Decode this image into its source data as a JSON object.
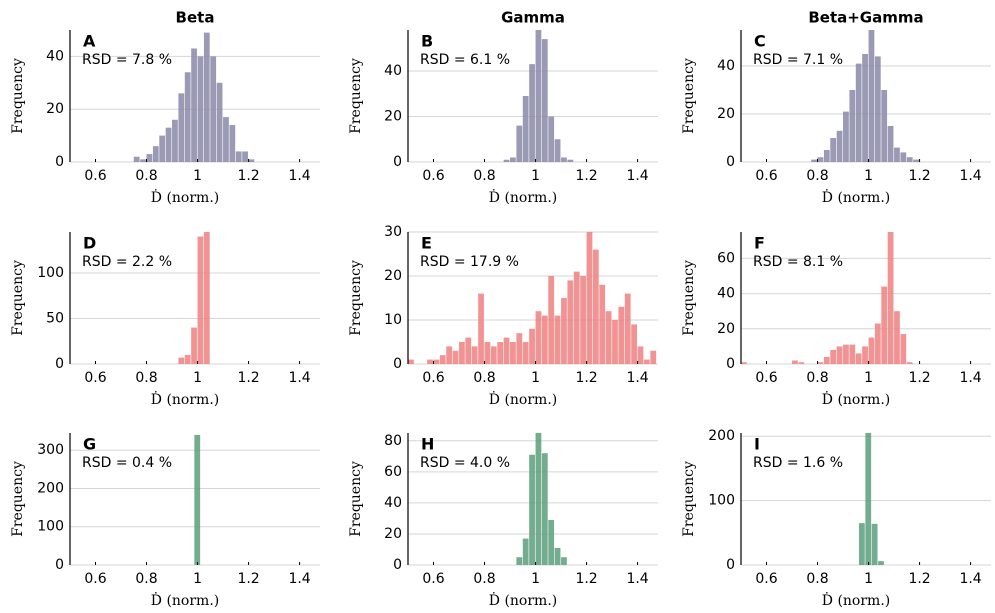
{
  "chart_data": [
    {
      "type": "histogram",
      "title": "Beta",
      "panel_label": "A",
      "annotation": "RSD = 7.8 %",
      "xlabel": "Ḋ (norm.)",
      "ylabel": "Frequency",
      "color": "#8a88a8",
      "bins": [
        0.75,
        0.775,
        0.8,
        0.825,
        0.85,
        0.875,
        0.9,
        0.925,
        0.95,
        0.975,
        1.0,
        1.025,
        1.05,
        1.075,
        1.1,
        1.125,
        1.15,
        1.175,
        1.2,
        1.225
      ],
      "counts": [
        2,
        1,
        3,
        6,
        10,
        13,
        16,
        26,
        34,
        43,
        40,
        49,
        40,
        30,
        17,
        14,
        4,
        4,
        1
      ],
      "xlim": [
        0.5,
        1.48
      ],
      "ylim": [
        0,
        50
      ],
      "xticks": [
        0.6,
        0.8,
        1,
        1.2,
        1.4
      ],
      "yticks": [
        0,
        20,
        40
      ],
      "grid": true
    },
    {
      "type": "histogram",
      "title": "Gamma",
      "panel_label": "B",
      "annotation": "RSD = 6.1 %",
      "xlabel": "Ḋ (norm.)",
      "ylabel": "Frequency",
      "color": "#8a88a8",
      "bins": [
        0.875,
        0.9,
        0.925,
        0.95,
        0.975,
        1.0,
        1.025,
        1.05,
        1.075,
        1.1,
        1.125,
        1.15
      ],
      "counts": [
        1,
        2,
        16,
        29,
        43,
        58,
        54,
        20,
        10,
        2,
        1
      ],
      "xlim": [
        0.5,
        1.48
      ],
      "ylim": [
        0,
        58
      ],
      "xticks": [
        0.6,
        0.8,
        1,
        1.2,
        1.4
      ],
      "yticks": [
        0,
        20,
        40
      ],
      "grid": true
    },
    {
      "type": "histogram",
      "title": "Beta+Gamma",
      "panel_label": "C",
      "annotation": "RSD = 7.1 %",
      "xlabel": "Ḋ (norm.)",
      "ylabel": "Frequency",
      "color": "#8a88a8",
      "bins": [
        0.775,
        0.8,
        0.825,
        0.85,
        0.875,
        0.9,
        0.925,
        0.95,
        0.975,
        1.0,
        1.025,
        1.05,
        1.075,
        1.1,
        1.125,
        1.15,
        1.175,
        1.2
      ],
      "counts": [
        1,
        2,
        5,
        10,
        13,
        21,
        30,
        41,
        45,
        55,
        44,
        30,
        15,
        6,
        4,
        2,
        1
      ],
      "xlim": [
        0.5,
        1.48
      ],
      "ylim": [
        0,
        55
      ],
      "xticks": [
        0.6,
        0.8,
        1,
        1.2,
        1.4
      ],
      "yticks": [
        0,
        20,
        40
      ],
      "grid": true
    },
    {
      "type": "histogram",
      "panel_label": "D",
      "annotation": "RSD = 2.2 %",
      "xlabel": "Ḋ (norm.)",
      "ylabel": "Frequency",
      "color": "#f08080",
      "bins": [
        0.925,
        0.95,
        0.975,
        1.0,
        1.025,
        1.05
      ],
      "counts": [
        7,
        10,
        40,
        140,
        145
      ],
      "xlim": [
        0.5,
        1.48
      ],
      "ylim": [
        0,
        145
      ],
      "xticks": [
        0.6,
        0.8,
        1,
        1.2,
        1.4
      ],
      "yticks": [
        0,
        50,
        100
      ],
      "grid": true
    },
    {
      "type": "histogram",
      "panel_label": "E",
      "annotation": "RSD = 17.9 %",
      "xlabel": "Ḋ (norm.)",
      "ylabel": "Frequency",
      "color": "#f08080",
      "bins": [
        0.5,
        0.525,
        0.55,
        0.575,
        0.6,
        0.625,
        0.65,
        0.675,
        0.7,
        0.725,
        0.75,
        0.775,
        0.8,
        0.825,
        0.85,
        0.875,
        0.9,
        0.925,
        0.95,
        0.975,
        1.0,
        1.025,
        1.05,
        1.075,
        1.1,
        1.125,
        1.15,
        1.175,
        1.2,
        1.225,
        1.25,
        1.275,
        1.3,
        1.325,
        1.35,
        1.375,
        1.4,
        1.425,
        1.45,
        1.475
      ],
      "counts": [
        1,
        0,
        0,
        1,
        1,
        2,
        4,
        3,
        5,
        6,
        4,
        16,
        5,
        4,
        5,
        6,
        5,
        7,
        5,
        8,
        12,
        11,
        20,
        11,
        15,
        19,
        21,
        20,
        30,
        26,
        18,
        12,
        10,
        13,
        16,
        9,
        4,
        1,
        3
      ],
      "xlim": [
        0.5,
        1.48
      ],
      "ylim": [
        0,
        30
      ],
      "xticks": [
        0.6,
        0.8,
        1,
        1.2,
        1.4
      ],
      "yticks": [
        0,
        10,
        20,
        30
      ],
      "grid": true
    },
    {
      "type": "histogram",
      "panel_label": "F",
      "annotation": "RSD = 8.1 %",
      "xlabel": "Ḋ (norm.)",
      "ylabel": "Frequency",
      "color": "#f08080",
      "bins": [
        0.5,
        0.525,
        0.55,
        0.575,
        0.6,
        0.625,
        0.65,
        0.675,
        0.7,
        0.725,
        0.75,
        0.775,
        0.8,
        0.825,
        0.85,
        0.875,
        0.9,
        0.925,
        0.95,
        0.975,
        1.0,
        1.025,
        1.05,
        1.075,
        1.1,
        1.125,
        1.15,
        1.175
      ],
      "counts": [
        1,
        0,
        0,
        0,
        0,
        0,
        0,
        0,
        2,
        1,
        0,
        0,
        1,
        4,
        8,
        10,
        11,
        11,
        6,
        10,
        15,
        23,
        44,
        75,
        30,
        17,
        1
      ],
      "xlim": [
        0.5,
        1.48
      ],
      "ylim": [
        0,
        75
      ],
      "xticks": [
        0.6,
        0.8,
        1,
        1.2,
        1.4
      ],
      "yticks": [
        0,
        20,
        40,
        60
      ],
      "grid": true
    },
    {
      "type": "histogram",
      "panel_label": "G",
      "annotation": "RSD = 0.4 %",
      "xlabel": "Ḋ (norm.)",
      "ylabel": "Frequency",
      "color": "#5a9e7a",
      "bins": [
        0.9875,
        1.0125
      ],
      "counts": [
        340
      ],
      "xlim": [
        0.5,
        1.48
      ],
      "ylim": [
        0,
        345
      ],
      "xticks": [
        0.6,
        0.8,
        1,
        1.2,
        1.4
      ],
      "yticks": [
        0,
        100,
        200,
        300
      ],
      "grid": true
    },
    {
      "type": "histogram",
      "panel_label": "H",
      "annotation": "RSD = 4.0 %",
      "xlabel": "Ḋ (norm.)",
      "ylabel": "Frequency",
      "color": "#5a9e7a",
      "bins": [
        0.925,
        0.95,
        0.975,
        1.0,
        1.025,
        1.05,
        1.075,
        1.1,
        1.125
      ],
      "counts": [
        5,
        17,
        71,
        85,
        72,
        29,
        11,
        5
      ],
      "xlim": [
        0.5,
        1.48
      ],
      "ylim": [
        0,
        85
      ],
      "xticks": [
        0.6,
        0.8,
        1,
        1.2,
        1.4
      ],
      "yticks": [
        0,
        20,
        40,
        60,
        80
      ],
      "grid": true
    },
    {
      "type": "histogram",
      "panel_label": "I",
      "annotation": "RSD = 1.6 %",
      "xlabel": "Ḋ (norm.)",
      "ylabel": "Frequency",
      "color": "#5a9e7a",
      "bins": [
        0.9625,
        0.9875,
        1.0125,
        1.0375,
        1.0625
      ],
      "counts": [
        65,
        205,
        64,
        6
      ],
      "xlim": [
        0.5,
        1.48
      ],
      "ylim": [
        0,
        205
      ],
      "xticks": [
        0.6,
        0.8,
        1,
        1.2,
        1.4
      ],
      "yticks": [
        0,
        100,
        200
      ],
      "grid": true
    }
  ]
}
